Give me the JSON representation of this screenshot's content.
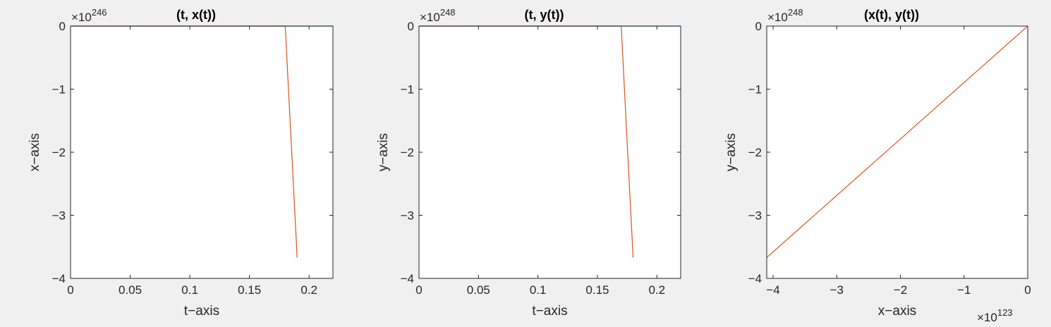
{
  "colors": {
    "background": "#f0f0f0",
    "plot_area": "#ffffff",
    "axis": "#262626",
    "series_1": "#0072bd",
    "series_2": "#d95319"
  },
  "chart_data": [
    {
      "type": "line",
      "title": "(t, x(t))",
      "xlabel": "t-axis",
      "ylabel": "x-axis",
      "xlim": [
        0,
        0.22
      ],
      "ylim": [
        -4,
        0
      ],
      "xticks": [
        "0",
        "0.05",
        "0.1",
        "0.15",
        "0.2"
      ],
      "yticks": [
        "0",
        "-1",
        "-2",
        "-3",
        "-4"
      ],
      "xtick_values": [
        0,
        0.05,
        0.1,
        0.15,
        0.2
      ],
      "ytick_values": [
        0,
        -1,
        -2,
        -3,
        -4
      ],
      "y_exponent": "×10",
      "y_exponent_power": "246",
      "x_exponent": "",
      "x_exponent_power": "",
      "series": [
        {
          "color": "#0072bd",
          "x": [
            0,
            0.18,
            0.22
          ],
          "y": [
            0,
            0,
            0
          ]
        },
        {
          "color": "#d95319",
          "x": [
            0,
            0.18,
            0.19
          ],
          "y": [
            0,
            0,
            -3.67
          ]
        }
      ]
    },
    {
      "type": "line",
      "title": "(t, y(t))",
      "xlabel": "t-axis",
      "ylabel": "y-axis",
      "xlim": [
        0,
        0.22
      ],
      "ylim": [
        -4,
        0
      ],
      "xticks": [
        "0",
        "0.05",
        "0.1",
        "0.15",
        "0.2"
      ],
      "yticks": [
        "0",
        "-1",
        "-2",
        "-3",
        "-4"
      ],
      "xtick_values": [
        0,
        0.05,
        0.1,
        0.15,
        0.2
      ],
      "ytick_values": [
        0,
        -1,
        -2,
        -3,
        -4
      ],
      "y_exponent": "×10",
      "y_exponent_power": "248",
      "x_exponent": "",
      "x_exponent_power": "",
      "series": [
        {
          "color": "#0072bd",
          "x": [
            0,
            0.17,
            0.22
          ],
          "y": [
            0,
            0,
            0
          ]
        },
        {
          "color": "#d95319",
          "x": [
            0,
            0.17,
            0.18
          ],
          "y": [
            0,
            0,
            -3.67
          ]
        }
      ]
    },
    {
      "type": "line",
      "title": "(x(t), y(t))",
      "xlabel": "x-axis",
      "ylabel": "y-axis",
      "xlim": [
        -4.1,
        0
      ],
      "ylim": [
        -4,
        0
      ],
      "xticks": [
        "-4",
        "-3",
        "-2",
        "-1",
        "0"
      ],
      "yticks": [
        "0",
        "-1",
        "-2",
        "-3",
        "-4"
      ],
      "xtick_values": [
        -4,
        -3,
        -2,
        -1,
        0
      ],
      "ytick_values": [
        0,
        -1,
        -2,
        -3,
        -4
      ],
      "y_exponent": "×10",
      "y_exponent_power": "248",
      "x_exponent": "×10",
      "x_exponent_power": "123",
      "series": [
        {
          "color": "#d95319",
          "x": [
            -4.1,
            0
          ],
          "y": [
            -3.67,
            0
          ]
        }
      ]
    }
  ]
}
